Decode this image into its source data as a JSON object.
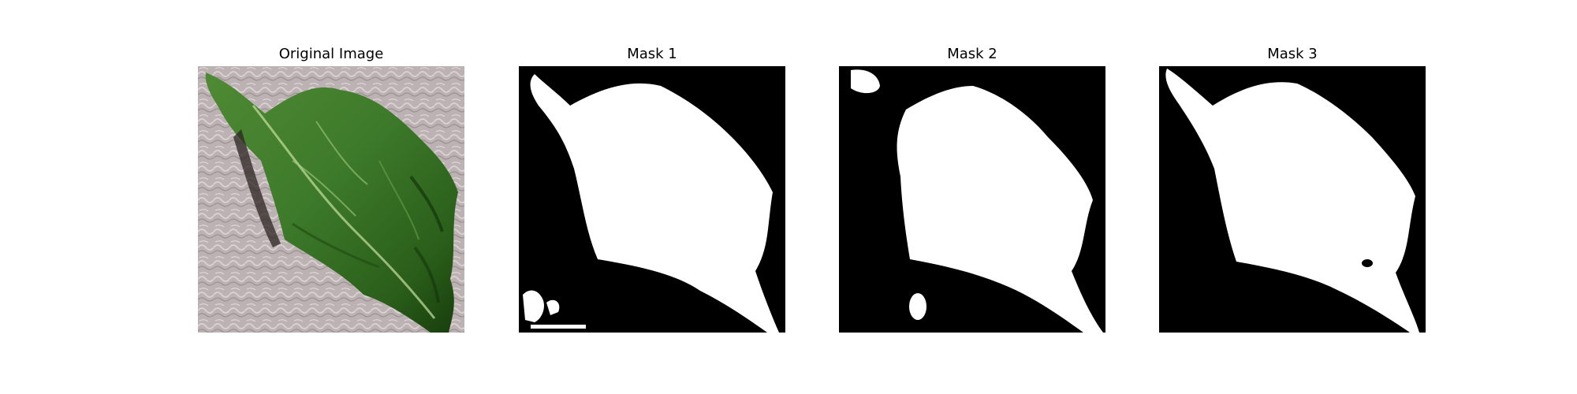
{
  "figure": {
    "panels": [
      {
        "title": "Original Image",
        "kind": "photo"
      },
      {
        "title": "Mask 1",
        "kind": "mask"
      },
      {
        "title": "Mask 2",
        "kind": "mask"
      },
      {
        "title": "Mask 3",
        "kind": "mask"
      }
    ]
  },
  "colors": {
    "leaf_dark": "#1f4d12",
    "leaf_mid": "#3d7a2a",
    "leaf_light": "#8fbf6a",
    "background_texture": "#b9aeb0",
    "mask_foreground": "#ffffff",
    "mask_background": "#000000"
  }
}
